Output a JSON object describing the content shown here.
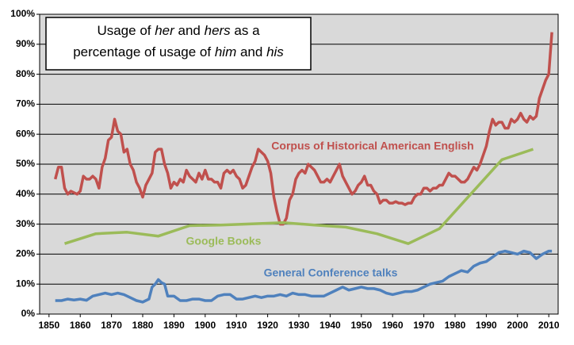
{
  "chart_data": {
    "type": "line",
    "title": [
      [
        {
          "text": "Usage of "
        },
        {
          "text": "her",
          "italic": true
        },
        {
          "text": " and "
        },
        {
          "text": "hers",
          "italic": true
        },
        {
          "text": " as a"
        }
      ],
      [
        {
          "text": "percentage of usage of "
        },
        {
          "text": "him",
          "italic": true
        },
        {
          "text": " and "
        },
        {
          "text": "his",
          "italic": true
        }
      ]
    ],
    "xlim": [
      1847,
      2013
    ],
    "xticks": [
      1850,
      1860,
      1870,
      1880,
      1890,
      1900,
      1910,
      1920,
      1930,
      1940,
      1950,
      1960,
      1970,
      1980,
      1990,
      2000,
      2010
    ],
    "ylim": [
      0,
      100
    ],
    "yticks": [
      {
        "value": 0,
        "label": "0%"
      },
      {
        "value": 10,
        "label": "10%"
      },
      {
        "value": 20,
        "label": "20%"
      },
      {
        "value": 30,
        "label": "30%"
      },
      {
        "value": 40,
        "label": "40%"
      },
      {
        "value": 50,
        "label": "50%"
      },
      {
        "value": 60,
        "label": "60%"
      },
      {
        "value": 70,
        "label": "70%"
      },
      {
        "value": 80,
        "label": "80%"
      },
      {
        "value": 90,
        "label": "90%"
      },
      {
        "value": 100,
        "label": "100%"
      }
    ],
    "grid": true,
    "series": [
      {
        "name": "Corpus of Historical American English",
        "color": "#c0504d",
        "x": [
          1852,
          1853,
          1854,
          1855,
          1856,
          1857,
          1858,
          1859,
          1860,
          1861,
          1862,
          1863,
          1864,
          1865,
          1866,
          1867,
          1868,
          1869,
          1870,
          1871,
          1872,
          1873,
          1874,
          1875,
          1876,
          1877,
          1878,
          1879,
          1880,
          1881,
          1882,
          1883,
          1884,
          1885,
          1886,
          1887,
          1888,
          1889,
          1890,
          1891,
          1892,
          1893,
          1894,
          1895,
          1896,
          1897,
          1898,
          1899,
          1900,
          1901,
          1902,
          1903,
          1904,
          1905,
          1906,
          1907,
          1908,
          1909,
          1910,
          1911,
          1912,
          1913,
          1914,
          1915,
          1916,
          1917,
          1918,
          1919,
          1920,
          1921,
          1922,
          1923,
          1924,
          1925,
          1926,
          1927,
          1928,
          1929,
          1930,
          1931,
          1932,
          1933,
          1934,
          1935,
          1936,
          1937,
          1938,
          1939,
          1940,
          1941,
          1942,
          1943,
          1944,
          1945,
          1946,
          1947,
          1948,
          1949,
          1950,
          1951,
          1952,
          1953,
          1954,
          1955,
          1956,
          1957,
          1958,
          1959,
          1960,
          1961,
          1962,
          1963,
          1964,
          1965,
          1966,
          1967,
          1968,
          1969,
          1970,
          1971,
          1972,
          1973,
          1974,
          1975,
          1976,
          1977,
          1978,
          1979,
          1980,
          1981,
          1982,
          1983,
          1984,
          1985,
          1986,
          1987,
          1988,
          1989,
          1990,
          1991,
          1992,
          1993,
          1994,
          1995,
          1996,
          1997,
          1998,
          1999,
          2000,
          2001,
          2002,
          2003,
          2004,
          2005,
          2006,
          2007,
          2008,
          2009,
          2010,
          2011
        ],
        "values": [
          45,
          49,
          49,
          42,
          40,
          41,
          40.5,
          40,
          41,
          46,
          45,
          45,
          46,
          45,
          42,
          49,
          52,
          58,
          59,
          65,
          61,
          60,
          54,
          55,
          50,
          48,
          44,
          42,
          39,
          43,
          45,
          47,
          54,
          55,
          55,
          50,
          47,
          42,
          44,
          43,
          45,
          44,
          48,
          46,
          45,
          44,
          47,
          45,
          48,
          45,
          45,
          44,
          44,
          42,
          47,
          48,
          47,
          48,
          46,
          45,
          42,
          43,
          46,
          49,
          51,
          55,
          54,
          53,
          51,
          47,
          39,
          34,
          30,
          30,
          32,
          38,
          40,
          45,
          47,
          48,
          47,
          50,
          49,
          48,
          46,
          44,
          44,
          45,
          44,
          46,
          48,
          50,
          46,
          44,
          42,
          40,
          41,
          43,
          44,
          46,
          43,
          43,
          41,
          40,
          37,
          38,
          38,
          37,
          37,
          37.5,
          37,
          37,
          36.5,
          37,
          37,
          39,
          40,
          40,
          42,
          42,
          41,
          42,
          42,
          43,
          43,
          45,
          47,
          46,
          46,
          45,
          44,
          44,
          45,
          47,
          49,
          48,
          50,
          53,
          56,
          61,
          65,
          63,
          64,
          64,
          62,
          62,
          65,
          64,
          65,
          67,
          65,
          64,
          66,
          65,
          66,
          72,
          75,
          78,
          80,
          94
        ]
      },
      {
        "name": "Google Books",
        "color": "#9bbb59",
        "x": [
          1855,
          1865,
          1875,
          1885,
          1895,
          1905,
          1915,
          1925,
          1935,
          1945,
          1955,
          1965,
          1975,
          1985,
          1995,
          2005
        ],
        "values": [
          23.5,
          26.8,
          27.3,
          26,
          29.5,
          29.7,
          30.1,
          30.5,
          29.7,
          29,
          26.8,
          23.5,
          28.5,
          40,
          51.5,
          55
        ]
      },
      {
        "name": "General Conference talks",
        "color": "#4f81bd",
        "x": [
          1852,
          1854,
          1856,
          1858,
          1860,
          1862,
          1864,
          1866,
          1868,
          1870,
          1872,
          1874,
          1876,
          1878,
          1880,
          1882,
          1883,
          1884,
          1885,
          1886,
          1887,
          1888,
          1890,
          1892,
          1894,
          1896,
          1898,
          1900,
          1902,
          1904,
          1906,
          1908,
          1910,
          1912,
          1914,
          1916,
          1918,
          1920,
          1922,
          1924,
          1926,
          1928,
          1930,
          1932,
          1934,
          1936,
          1938,
          1940,
          1942,
          1944,
          1946,
          1948,
          1950,
          1952,
          1954,
          1956,
          1958,
          1960,
          1962,
          1964,
          1966,
          1968,
          1970,
          1972,
          1974,
          1976,
          1978,
          1980,
          1982,
          1984,
          1986,
          1988,
          1990,
          1992,
          1994,
          1996,
          1998,
          2000,
          2002,
          2004,
          2006,
          2008,
          2010,
          2011
        ],
        "values": [
          4.5,
          4.5,
          5,
          4.7,
          5,
          4.6,
          6,
          6.5,
          7,
          6.5,
          7,
          6.5,
          5.5,
          4.5,
          4,
          5,
          9,
          10,
          11.5,
          10.5,
          10,
          6,
          6,
          4.5,
          4.5,
          5,
          5,
          4.5,
          4.5,
          6,
          6.5,
          6.5,
          5,
          5,
          5.5,
          6,
          5.5,
          6,
          6,
          6.5,
          6,
          7,
          6.5,
          6.5,
          6,
          6,
          6,
          7,
          8,
          9,
          8,
          8.5,
          9,
          8.5,
          8.5,
          8,
          7,
          6.5,
          7,
          7.5,
          7.5,
          8,
          9,
          10,
          10.5,
          11,
          12.5,
          13.5,
          14.5,
          14,
          16,
          17,
          17.5,
          19,
          20.5,
          21,
          20.5,
          20,
          21,
          20.5,
          18.5,
          20,
          21,
          21
        ]
      }
    ]
  }
}
